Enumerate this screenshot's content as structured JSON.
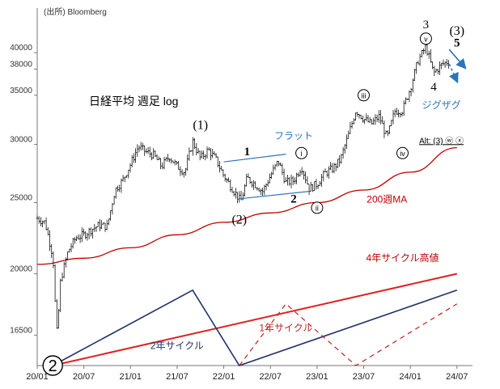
{
  "chart_data": {
    "type": "line",
    "title": "日経平均 週足 log",
    "source": "(出所) Bloomberg",
    "yscale": "log",
    "ylim": [
      15000,
      46000
    ],
    "xlim": [
      "2020-01",
      "2024-09"
    ],
    "y_ticks": [
      16500,
      20000,
      25000,
      30000,
      35000,
      38000,
      40000
    ],
    "y_tick_labels": [
      "16500",
      "20000",
      "25000",
      "30000",
      "35000",
      "38000",
      "40000"
    ],
    "x_ticks": [
      "2020-01",
      "2020-07",
      "2021-01",
      "2021-07",
      "2022-01",
      "2022-07",
      "2023-01",
      "2023-07",
      "2024-01",
      "2024-07"
    ],
    "x_tick_labels": [
      "20/01",
      "20/07",
      "21/01",
      "21/07",
      "22/01",
      "22/07",
      "23/01",
      "23/07",
      "24/01",
      "24/07"
    ],
    "series": [
      {
        "type": "weekly-price",
        "color": "#000000",
        "points": [
          [
            "2020-01",
            23800
          ],
          [
            "2020-02",
            23500
          ],
          [
            "2020-03-02",
            21100
          ],
          [
            "2020-03-16",
            16500
          ],
          [
            "2020-03-30",
            18800
          ],
          [
            "2020-04",
            19600
          ],
          [
            "2020-05",
            21500
          ],
          [
            "2020-06",
            22400
          ],
          [
            "2020-07",
            22600
          ],
          [
            "2020-08",
            23000
          ],
          [
            "2020-09",
            23300
          ],
          [
            "2020-10",
            23200
          ],
          [
            "2020-11",
            26000
          ],
          [
            "2020-12",
            26800
          ],
          [
            "2021-01",
            28200
          ],
          [
            "2021-02",
            29800
          ],
          [
            "2021-03",
            29300
          ],
          [
            "2021-04",
            29000
          ],
          [
            "2021-05",
            28000
          ],
          [
            "2021-06",
            28900
          ],
          [
            "2021-07",
            28000
          ],
          [
            "2021-08",
            27500
          ],
          [
            "2021-09",
            30300
          ],
          [
            "2021-10",
            28700
          ],
          [
            "2021-11",
            29500
          ],
          [
            "2021-12",
            28600
          ],
          [
            "2022-01",
            27200
          ],
          [
            "2022-03-07",
            25100
          ],
          [
            "2022-04",
            27000
          ],
          [
            "2022-05",
            26500
          ],
          [
            "2022-06",
            25900
          ],
          [
            "2022-08",
            28500
          ],
          [
            "2022-09",
            26600
          ],
          [
            "2022-10",
            26800
          ],
          [
            "2022-11",
            28000
          ],
          [
            "2022-12",
            26100
          ],
          [
            "2023-01",
            26500
          ],
          [
            "2023-02",
            27400
          ],
          [
            "2023-03",
            27800
          ],
          [
            "2023-04",
            28600
          ],
          [
            "2023-05",
            30800
          ],
          [
            "2023-06",
            33400
          ],
          [
            "2023-07",
            32500
          ],
          [
            "2023-08",
            32000
          ],
          [
            "2023-09",
            32800
          ],
          [
            "2023-10",
            30600
          ],
          [
            "2023-11",
            33300
          ],
          [
            "2023-12",
            33400
          ],
          [
            "2024-01",
            35800
          ],
          [
            "2024-02",
            39000
          ],
          [
            "2024-03",
            40800
          ],
          [
            "2024-04",
            37500
          ],
          [
            "2024-05",
            38500
          ],
          [
            "2024-06",
            39000
          ]
        ]
      },
      {
        "name": "200週MA",
        "color": "#c00000",
        "points": [
          [
            "2020-01",
            20600
          ],
          [
            "2020-07",
            21000
          ],
          [
            "2021-01",
            21700
          ],
          [
            "2021-07",
            22600
          ],
          [
            "2022-01",
            23500
          ],
          [
            "2022-07",
            24200
          ],
          [
            "2023-01",
            25000
          ],
          [
            "2023-07",
            26000
          ],
          [
            "2024-01",
            27500
          ],
          [
            "2024-07",
            29700
          ]
        ]
      }
    ],
    "lines": [
      {
        "name": "4年サイクル高値",
        "color": "#e02020",
        "style": "solid",
        "width": 2,
        "points": [
          [
            "2020-03",
            15000
          ],
          [
            "2024-07",
            20000
          ]
        ]
      },
      {
        "name": "2年サイクル",
        "color": "#1f3366",
        "style": "solid",
        "width": 1.6,
        "points": [
          [
            "2020-03",
            15000
          ],
          [
            "2021-09",
            19000
          ],
          [
            "2022-03",
            15000
          ],
          [
            "2024-07",
            19000
          ]
        ]
      },
      {
        "name": "1年サイクル",
        "color": "#c02020",
        "style": "dashed",
        "width": 1.2,
        "points": [
          [
            "2022-03",
            15000
          ],
          [
            "2022-09",
            18200
          ],
          [
            "2023-06",
            15000
          ],
          [
            "2024-07",
            18200
          ]
        ]
      },
      {
        "name": "フラット",
        "color": "#2e75b6",
        "style": "solid",
        "width": 1.2,
        "points": [
          [
            "2022-01",
            28400
          ],
          [
            "2022-09",
            29100
          ]
        ]
      },
      {
        "name": "フラット",
        "color": "#2e75b6",
        "style": "solid",
        "width": 1.2,
        "points": [
          [
            "2022-03",
            25300
          ],
          [
            "2022-12",
            25900
          ]
        ]
      }
    ],
    "annotations": [
      {
        "text": "(1)",
        "x": "2021-10",
        "y": 31500,
        "style": "paren"
      },
      {
        "text": "(2)",
        "x": "2022-03",
        "y": 23400,
        "style": "paren"
      },
      {
        "text": "(3)",
        "x": "2024-07",
        "y": 42300,
        "style": "paren"
      },
      {
        "text": "1",
        "x": "2022-04",
        "y": 29000,
        "style": "bold"
      },
      {
        "text": "2",
        "x": "2022-10",
        "y": 25000,
        "style": "bold"
      },
      {
        "text": "3",
        "x": "2024-03",
        "y": 43200,
        "style": "plain"
      },
      {
        "text": "4",
        "x": "2024-04",
        "y": 35500,
        "style": "plain"
      },
      {
        "text": "5",
        "x": "2024-07",
        "y": 40800,
        "style": "bold"
      },
      {
        "text": "i",
        "x": "2022-11",
        "y": 29200,
        "style": "circle"
      },
      {
        "text": "ii",
        "x": "2023-01",
        "y": 24600,
        "style": "circle"
      },
      {
        "text": "iii",
        "x": "2023-07",
        "y": 35000,
        "style": "circle"
      },
      {
        "text": "iv",
        "x": "2023-12",
        "y": 29200,
        "style": "circle"
      },
      {
        "text": "v",
        "x": "2024-03",
        "y": 41800,
        "style": "circle"
      },
      {
        "text": "フラット",
        "x": "2022-10",
        "y": 30500,
        "style": "blue"
      },
      {
        "text": "ジグザグ",
        "x": "2024-05",
        "y": 33600,
        "style": "blue"
      },
      {
        "text": "200週MA",
        "x": "2023-10",
        "y": 25000,
        "style": "red"
      },
      {
        "text": "4年サイクル高値",
        "x": "2023-12",
        "y": 20800,
        "style": "red"
      },
      {
        "text": "2年サイクル",
        "x": "2021-07",
        "y": 15800,
        "style": "navy"
      },
      {
        "text": "1年サイクル",
        "x": "2022-09",
        "y": 16700,
        "style": "darkred"
      },
      {
        "text": "Alt: (3) ⓦ ⓧ",
        "x": "2024-05",
        "y": 30100,
        "style": "alt"
      },
      {
        "text": "2",
        "x": "2020-03",
        "y": 15000,
        "style": "bigcircle"
      }
    ],
    "arrows": [
      {
        "from": [
          "2024-06",
          40400
        ],
        "to": [
          "2024-08",
          38200
        ],
        "style": "solid",
        "color": "#2e75b6"
      },
      {
        "from": [
          "2024-06",
          38600
        ],
        "to": [
          "2024-07",
          36600
        ],
        "style": "dashed",
        "color": "#2e75b6"
      }
    ],
    "grid": false,
    "legend": "none"
  }
}
